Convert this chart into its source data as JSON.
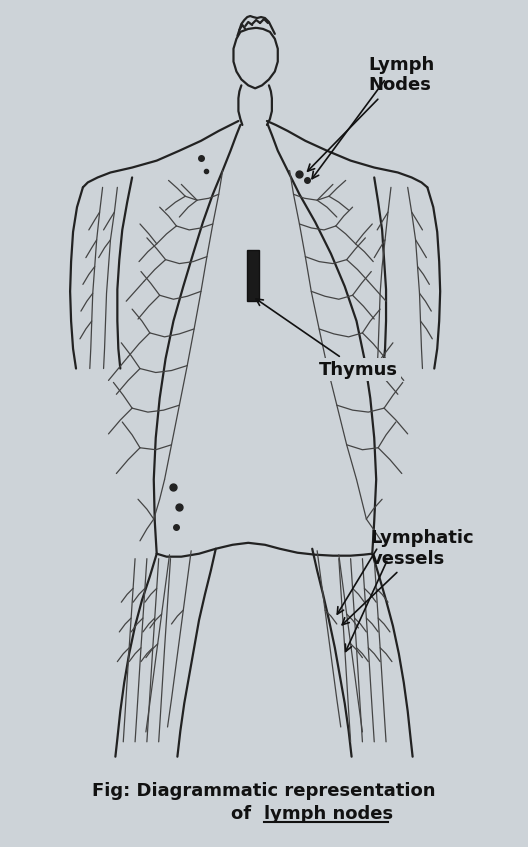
{
  "background_color": "#cdd3d8",
  "figure_size": [
    5.28,
    8.47
  ],
  "dpi": 100,
  "title_line1": "Fig: Diagrammatic representation",
  "title_line2": "of  lymph nodes",
  "title_fontsize": 13,
  "title_color": "#111111",
  "label_lymph_nodes": "Lymph\nNodes",
  "label_thymus": "Thymus",
  "label_lymphatic_vessels": "Lymphatic\nvessels",
  "annotation_color": "#111111",
  "body_color": "#222222",
  "vessel_color": "#444444"
}
